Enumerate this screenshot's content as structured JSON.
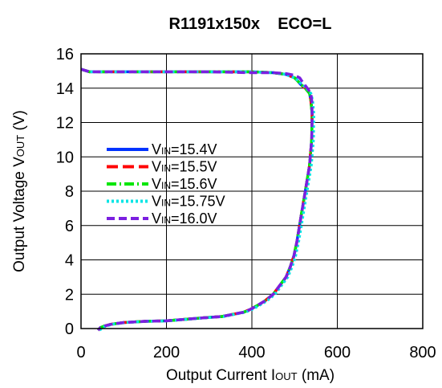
{
  "chart_data": {
    "type": "line",
    "title": "R1191x150x    ECO=L",
    "xlabel": {
      "pre": "Output Current I",
      "sub": "OUT",
      "post": " (mA)"
    },
    "ylabel": {
      "pre": "Output Voltage V",
      "sub": "OUT",
      "post": " (V)"
    },
    "xlim": [
      0,
      800
    ],
    "ylim": [
      0,
      16
    ],
    "xticks": [
      0,
      200,
      400,
      600,
      800
    ],
    "yticks": [
      0,
      2,
      4,
      6,
      8,
      10,
      12,
      14,
      16
    ],
    "grid": true,
    "legend_position": "center-left",
    "series": [
      {
        "name": "15.4V",
        "color": "#0033ff",
        "dash": "none",
        "x": [
          0,
          20,
          100,
          300,
          400,
          450,
          480,
          500,
          508,
          515,
          525,
          535,
          538,
          541,
          540,
          535,
          525,
          515,
          505,
          498,
          490,
          480,
          465,
          450,
          430,
          410,
          395,
          380,
          360,
          330,
          300,
          250,
          200,
          150,
          100,
          70,
          55,
          45,
          40
        ],
        "y": [
          15.1,
          14.95,
          14.95,
          14.95,
          14.95,
          14.9,
          14.8,
          14.6,
          14.4,
          14.2,
          14.0,
          13.7,
          13.3,
          12.5,
          11.0,
          9.5,
          8.0,
          6.5,
          5.0,
          4.2,
          3.6,
          3.0,
          2.5,
          2.0,
          1.6,
          1.3,
          1.1,
          0.95,
          0.85,
          0.7,
          0.65,
          0.55,
          0.45,
          0.42,
          0.35,
          0.25,
          0.15,
          0.05,
          -0.1
        ]
      },
      {
        "name": "15.5V",
        "color": "#ff0000",
        "dash": "14,6",
        "x": [
          0,
          20,
          100,
          300,
          400,
          450,
          480,
          500,
          508,
          515,
          525,
          535,
          538,
          541,
          540,
          535,
          525,
          515,
          505,
          498,
          490,
          480,
          465,
          450,
          430,
          410,
          395,
          380,
          360,
          330,
          300,
          250,
          200,
          150,
          100,
          70,
          55,
          45,
          40
        ],
        "y": [
          15.1,
          14.95,
          14.95,
          14.95,
          14.95,
          14.9,
          14.8,
          14.6,
          14.4,
          14.2,
          14.0,
          13.7,
          13.3,
          12.5,
          11.0,
          9.5,
          8.0,
          6.5,
          5.0,
          4.2,
          3.6,
          3.0,
          2.5,
          2.0,
          1.6,
          1.3,
          1.1,
          0.95,
          0.85,
          0.7,
          0.65,
          0.55,
          0.45,
          0.42,
          0.35,
          0.25,
          0.15,
          0.05,
          -0.1
        ]
      },
      {
        "name": "15.6V",
        "color": "#00e600",
        "dash": "12,4,2,4",
        "x": [
          0,
          20,
          100,
          300,
          400,
          450,
          480,
          500,
          508,
          515,
          525,
          535,
          538,
          541,
          540,
          535,
          525,
          515,
          505,
          498,
          490,
          480,
          465,
          450,
          430,
          410,
          395,
          380,
          360,
          330,
          300,
          250,
          200,
          150,
          100,
          70,
          55,
          45,
          40
        ],
        "y": [
          15.1,
          14.95,
          14.95,
          14.95,
          14.95,
          14.9,
          14.8,
          14.6,
          14.4,
          14.2,
          14.0,
          13.7,
          13.3,
          12.5,
          11.0,
          9.5,
          8.0,
          6.5,
          5.0,
          4.2,
          3.6,
          3.0,
          2.5,
          2.0,
          1.6,
          1.3,
          1.1,
          0.95,
          0.85,
          0.7,
          0.65,
          0.55,
          0.45,
          0.42,
          0.35,
          0.25,
          0.15,
          0.05,
          -0.1
        ]
      },
      {
        "name": "15.75V",
        "color": "#00e5e5",
        "dash": "3,3",
        "x": [
          0,
          20,
          100,
          300,
          400,
          450,
          480,
          500,
          510,
          518,
          528,
          538,
          542,
          545,
          544,
          539,
          529,
          519,
          509,
          502,
          494,
          484,
          469,
          454,
          434,
          414,
          399,
          384,
          364,
          334,
          304,
          254,
          204,
          154,
          104,
          74,
          59,
          49,
          44
        ],
        "y": [
          15.1,
          14.95,
          14.95,
          14.95,
          14.95,
          14.9,
          14.8,
          14.6,
          14.4,
          14.2,
          14.0,
          13.7,
          13.3,
          12.5,
          11.0,
          9.5,
          8.0,
          6.5,
          5.0,
          4.2,
          3.6,
          3.0,
          2.5,
          2.0,
          1.6,
          1.3,
          1.1,
          0.95,
          0.85,
          0.7,
          0.65,
          0.55,
          0.45,
          0.42,
          0.35,
          0.25,
          0.15,
          0.05,
          -0.1
        ]
      },
      {
        "name": "16.0V",
        "color": "#7b1fe0",
        "dash": "10,5",
        "x": [
          0,
          20,
          100,
          300,
          400,
          450,
          480,
          500,
          512,
          520,
          530,
          538,
          540,
          541,
          540,
          535,
          525,
          515,
          505,
          498,
          490,
          480,
          465,
          450,
          430,
          410,
          395,
          380,
          360,
          330,
          300,
          250,
          200,
          150,
          100,
          70,
          55,
          45,
          40
        ],
        "y": [
          15.1,
          14.95,
          14.95,
          14.95,
          14.9,
          14.9,
          14.85,
          14.75,
          14.6,
          14.3,
          14.0,
          13.7,
          13.3,
          12.5,
          11.0,
          9.5,
          8.0,
          6.5,
          5.0,
          4.2,
          3.6,
          3.0,
          2.5,
          2.0,
          1.6,
          1.3,
          1.1,
          0.95,
          0.85,
          0.7,
          0.65,
          0.55,
          0.45,
          0.42,
          0.35,
          0.25,
          0.15,
          0.05,
          -0.1
        ]
      }
    ],
    "legend_prefix": {
      "pre": "V",
      "sub": "IN",
      "post": "="
    }
  }
}
